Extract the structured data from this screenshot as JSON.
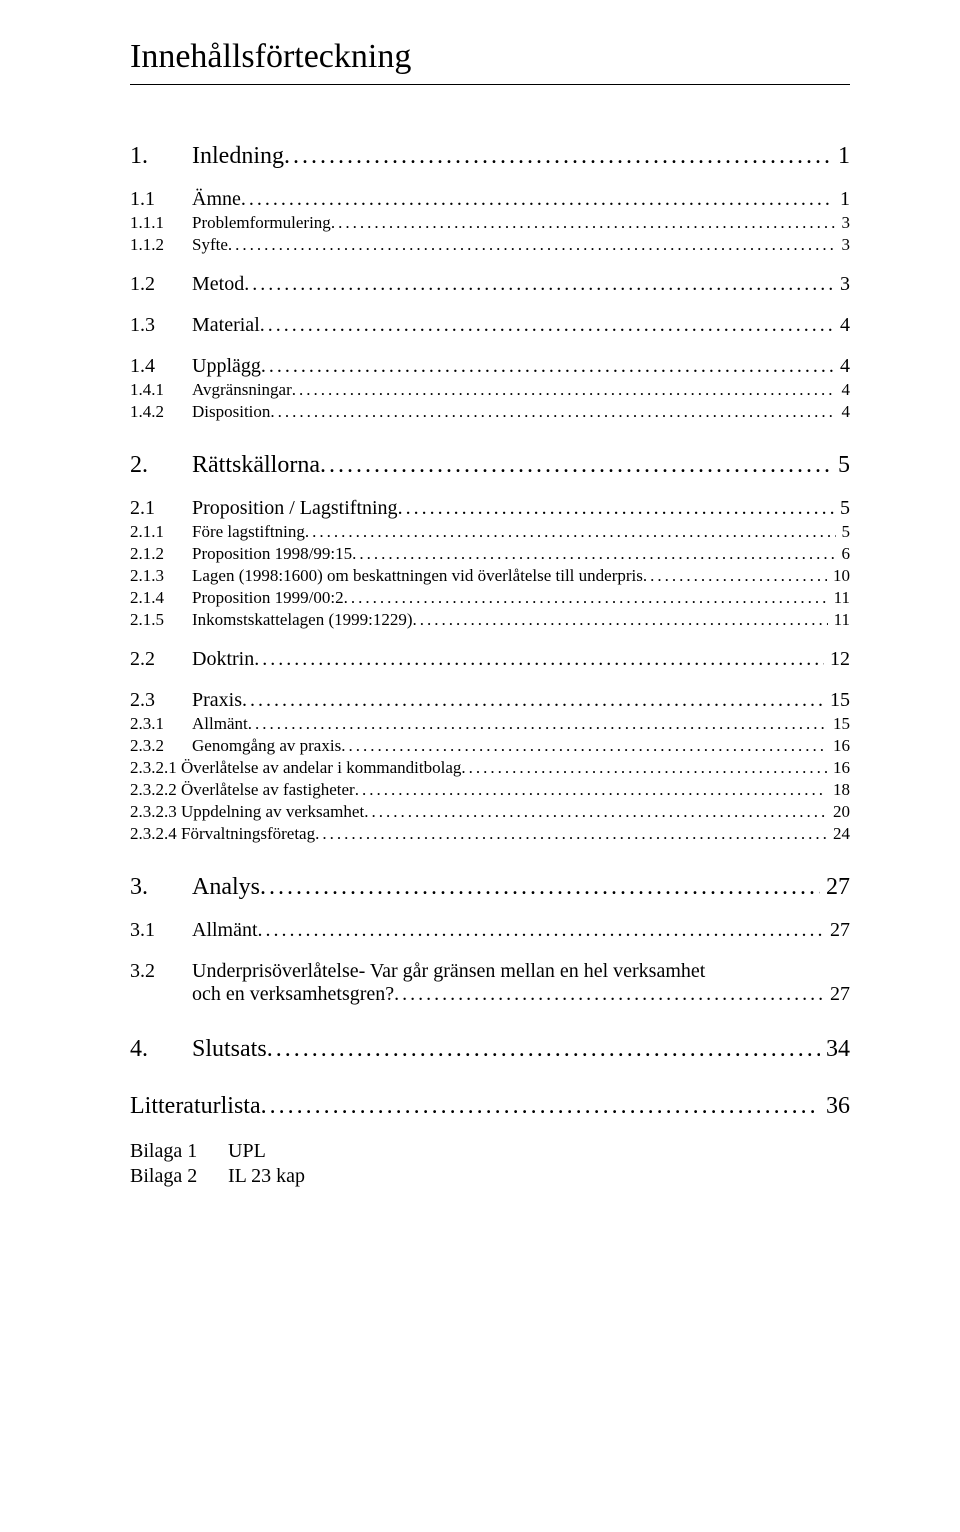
{
  "title": "Innehållsförteckning",
  "entries": [
    {
      "level": 1,
      "num": "1.",
      "label": "Inledning",
      "page": "1"
    },
    {
      "level": 2,
      "num": "1.1",
      "label": "Ämne",
      "page": "1"
    },
    {
      "level": 3,
      "num": "1.1.1",
      "label": "Problemformulering",
      "page": "3"
    },
    {
      "level": 3,
      "num": "1.1.2",
      "label": "Syfte",
      "page": "3"
    },
    {
      "level": 2,
      "num": "1.2",
      "label": "Metod",
      "page": "3"
    },
    {
      "level": 2,
      "num": "1.3",
      "label": "Material",
      "page": "4"
    },
    {
      "level": 2,
      "num": "1.4",
      "label": "Upplägg",
      "page": "4"
    },
    {
      "level": 3,
      "num": "1.4.1",
      "label": "Avgränsningar",
      "page": "4"
    },
    {
      "level": 3,
      "num": "1.4.2",
      "label": "Disposition",
      "page": "4"
    },
    {
      "level": 1,
      "num": "2.",
      "label": "Rättskällorna",
      "page": "5"
    },
    {
      "level": 2,
      "num": "2.1",
      "label": "Proposition / Lagstiftning",
      "page": "5"
    },
    {
      "level": 3,
      "num": "2.1.1",
      "label": "Före lagstiftning",
      "page": "5"
    },
    {
      "level": 3,
      "num": "2.1.2",
      "label": "Proposition 1998/99:15",
      "page": "6"
    },
    {
      "level": 3,
      "num": "2.1.3",
      "label": "Lagen (1998:1600) om beskattningen vid överlåtelse till underpris",
      "page": "10"
    },
    {
      "level": 3,
      "num": "2.1.4",
      "label": "Proposition 1999/00:2",
      "page": "11"
    },
    {
      "level": 3,
      "num": "2.1.5",
      "label": "Inkomstskattelagen (1999:1229)",
      "page": "11"
    },
    {
      "level": 2,
      "num": "2.2",
      "label": "Doktrin",
      "page": "12"
    },
    {
      "level": 2,
      "num": "2.3",
      "label": "Praxis",
      "page": "15"
    },
    {
      "level": 3,
      "num": "2.3.1",
      "label": "Allmänt",
      "page": "15"
    },
    {
      "level": 3,
      "num": "2.3.2",
      "label": "Genomgång av praxis",
      "page": "16"
    },
    {
      "level": 4,
      "num": "",
      "label": "2.3.2.1 Överlåtelse av andelar i kommanditbolag",
      "page": "16"
    },
    {
      "level": 4,
      "num": "",
      "label": "2.3.2.2 Överlåtelse av fastigheter",
      "page": "18"
    },
    {
      "level": 4,
      "num": "",
      "label": "2.3.2.3 Uppdelning av verksamhet",
      "page": "20"
    },
    {
      "level": 4,
      "num": "",
      "label": "2.3.2.4 Förvaltningsföretag",
      "page": "24"
    },
    {
      "level": 1,
      "num": "3.",
      "label": "Analys",
      "page": "27"
    },
    {
      "level": 2,
      "num": "3.1",
      "label": "Allmänt",
      "page": "27"
    },
    {
      "level": 2,
      "num": "3.2",
      "label_line1": "Underprisöverlåtelse- Var går gränsen mellan en hel verksamhet",
      "label_line2": "och en verksamhetsgren?",
      "page": "27",
      "twoline": true
    },
    {
      "level": 1,
      "num": "4.",
      "label": "Slutsats",
      "page": "34"
    }
  ],
  "literature": {
    "label": "Litteraturlista",
    "page": "36"
  },
  "appendices": [
    {
      "num": "Bilaga 1",
      "label": "UPL"
    },
    {
      "num": "Bilaga 2",
      "label": "IL 23 kap"
    }
  ],
  "dots": "........................................................................................................................................................"
}
